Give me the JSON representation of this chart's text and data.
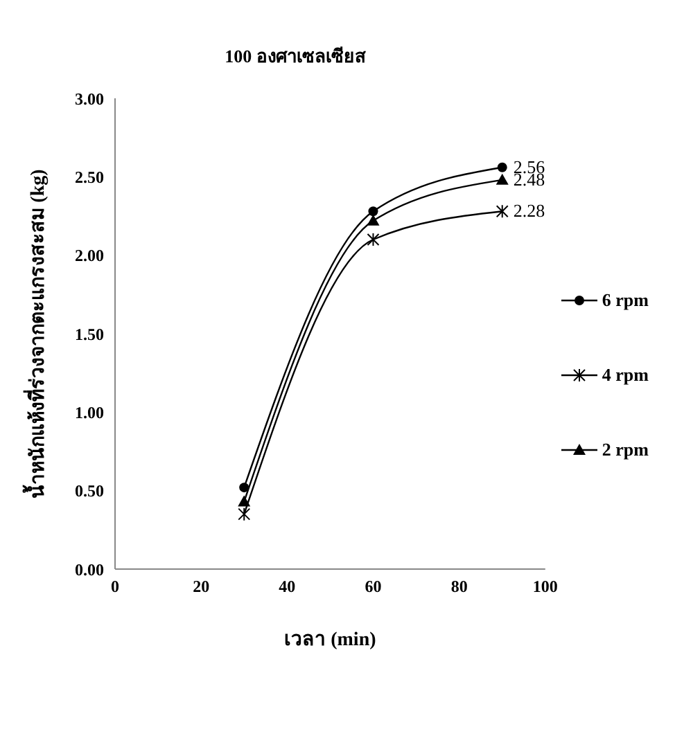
{
  "chart_data": {
    "type": "line",
    "title": "100 องศาเซลเซียส",
    "xlabel": "เวลา (min)",
    "ylabel": "น้ำหนักแห้งที่ร่วงจากตะแกรงสะสม (kg)",
    "x": [
      30,
      60,
      90
    ],
    "series": [
      {
        "name": "6 rpm",
        "color": "#000000",
        "marker": "circle",
        "values": [
          0.52,
          2.28,
          2.56
        ],
        "value_labels": [
          null,
          null,
          "2.56"
        ]
      },
      {
        "name": "4 rpm",
        "color": "#000000",
        "marker": "cross",
        "values": [
          0.35,
          2.1,
          2.28
        ],
        "value_labels": [
          null,
          null,
          "2.28"
        ]
      },
      {
        "name": "2 rpm",
        "color": "#000000",
        "marker": "triangle",
        "values": [
          0.43,
          2.22,
          2.48
        ],
        "value_labels": [
          null,
          null,
          "2.48"
        ]
      }
    ],
    "xlim": [
      0,
      100
    ],
    "xticks": [
      0,
      20,
      40,
      60,
      80,
      100
    ],
    "ylim": [
      0,
      3
    ],
    "yticks": [
      {
        "value": 0,
        "label": "0.00"
      },
      {
        "value": 0.5,
        "label": "0.50"
      },
      {
        "value": 1,
        "label": "1.00"
      },
      {
        "value": 1.5,
        "label": "1.50"
      },
      {
        "value": 2,
        "label": "2.00"
      },
      {
        "value": 2.5,
        "label": "2.50"
      },
      {
        "value": 3,
        "label": "3.00"
      }
    ],
    "grid": false,
    "legend": "right",
    "line_style": "solid"
  }
}
